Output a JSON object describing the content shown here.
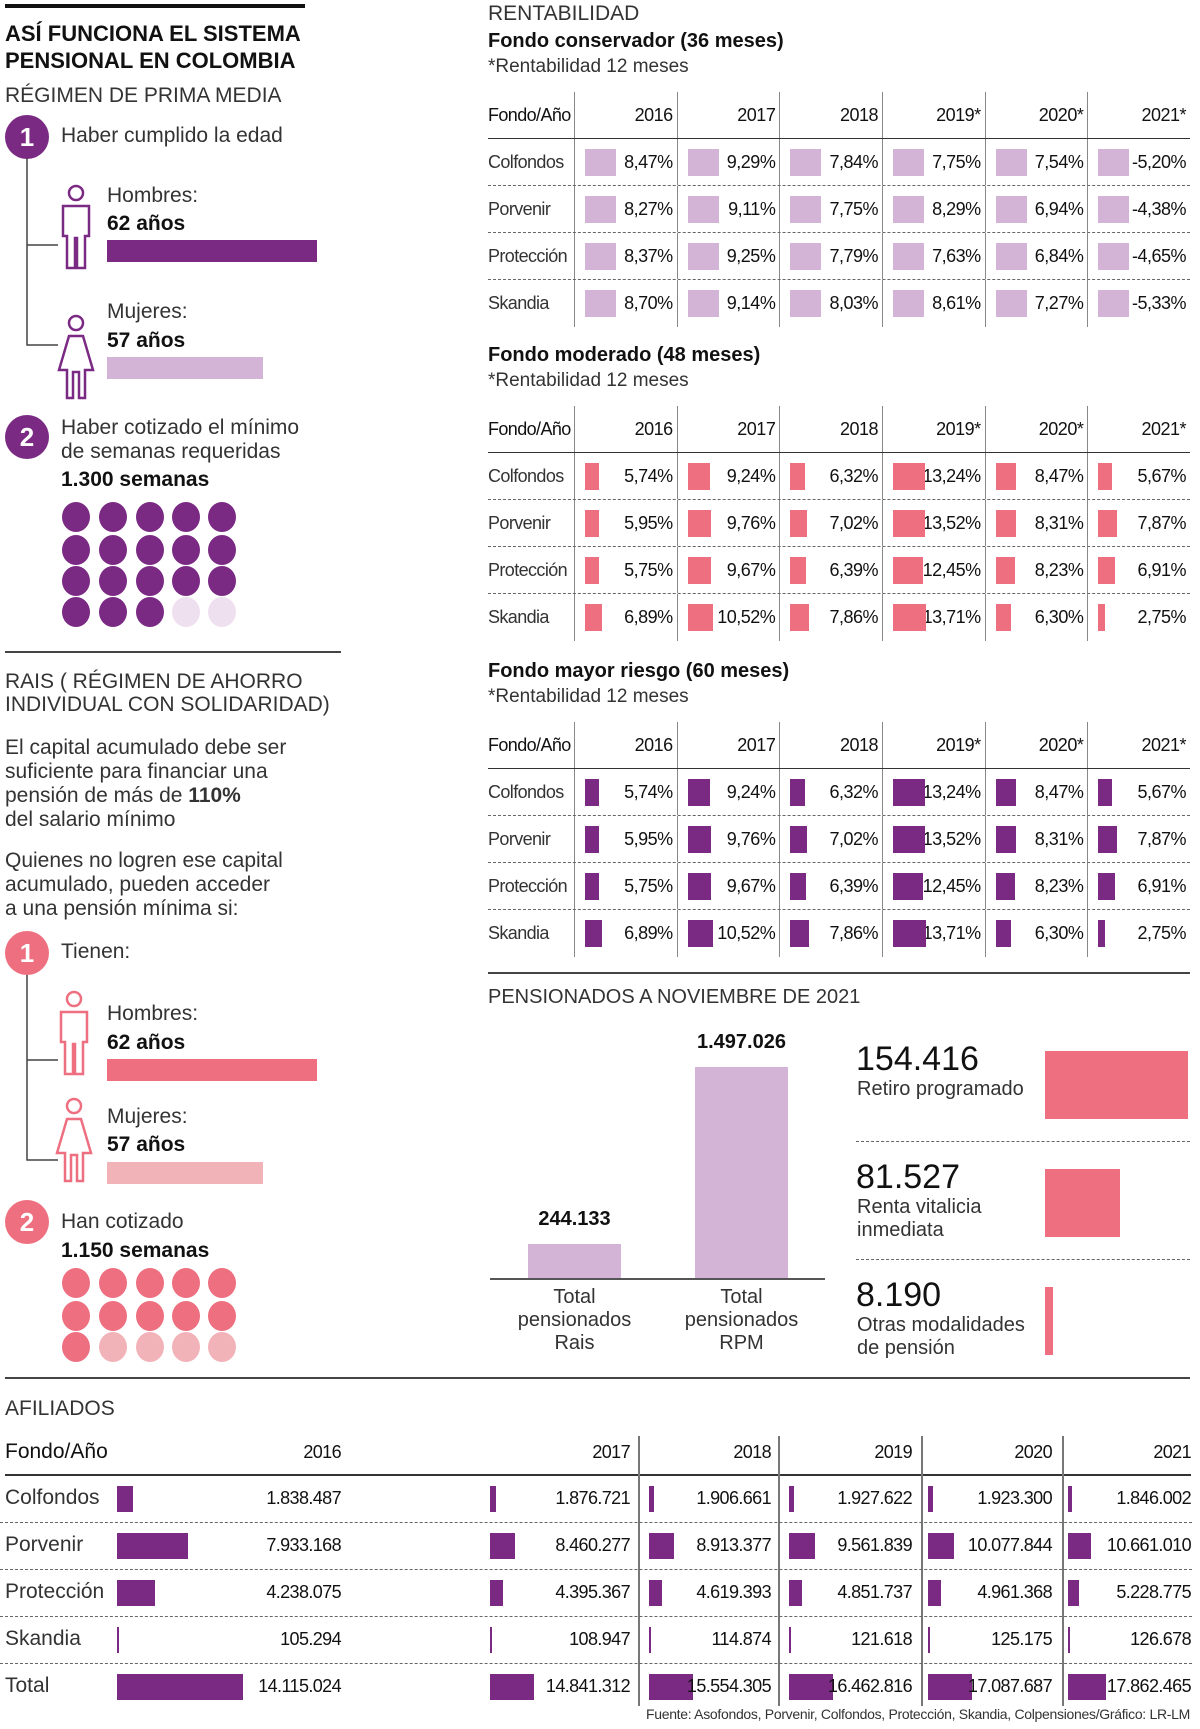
{
  "colors": {
    "purple": "#7b2a84",
    "lilac": "#d3b4d7",
    "pink": "#ee6f80",
    "light_pink": "#f2b3b8"
  },
  "left": {
    "title_line1": "ASÍ FUNCIONA EL SISTEMA",
    "title_line2": "PENSIONAL EN COLOMBIA",
    "rpm": {
      "heading": "RÉGIMEN DE PRIMA MEDIA",
      "step1_num": "1",
      "step1_text": "Haber cumplido la edad",
      "men_label": "Hombres:",
      "men_age": "62 años",
      "women_label": "Mujeres:",
      "women_age": "57 años",
      "step2_num": "2",
      "step2_line1": "Haber cotizado el mínimo",
      "step2_line2": "de semanas requeridas",
      "weeks": "1.300 semanas",
      "dots_filled": 18,
      "dots_total": 20
    },
    "rais": {
      "heading_line1": "RAIS ( RÉGIMEN DE AHORRO",
      "heading_line2": "INDIVIDUAL CON SOLIDARIDAD)",
      "p1_line1": "El capital acumulado debe ser",
      "p1_line2": "suficiente para financiar una",
      "p1_line3": "pensión de más de ",
      "p1_bold": "110%",
      "p1_line4": "del salario mínimo",
      "p2_line1": "Quienes no logren ese capital",
      "p2_line2": "acumulado, pueden acceder",
      "p2_line3": "a una pensión mínima si:",
      "step1_num": "1",
      "step1_text": "Tienen:",
      "men_label": "Hombres:",
      "men_age": "62 años",
      "women_label": "Mujeres:",
      "women_age": "57 años",
      "step2_num": "2",
      "step2_text": "Han cotizado",
      "weeks": "1.150 semanas",
      "dots_filled": 11,
      "dots_total": 15
    }
  },
  "rentabilidad": {
    "heading": "RENTABILIDAD"
  },
  "pensionados": {
    "heading": "PENSIONADOS A NOVIEMBRE DE 2021"
  },
  "source": "Fuente: Asofondos, Porvenir, Colfondos, Protección, Skandia, Colpensiones/Gráfico: LR-LM",
  "chart_data": [
    {
      "type": "table",
      "title": "Fondo conservador (36 meses)",
      "subtitle": "*Rentabilidad 12 meses",
      "corner": "Fondo/Año",
      "columns": [
        "2016",
        "2017",
        "2018",
        "2019*",
        "2020*",
        "2021*"
      ],
      "color": "#d3b4d7",
      "rows": [
        {
          "name": "Colfondos",
          "values": [
            "8,47%",
            "9,29%",
            "7,84%",
            "7,75%",
            "7,54%",
            "-5,20%"
          ]
        },
        {
          "name": "Porvenir",
          "values": [
            "8,27%",
            "9,11%",
            "7,75%",
            "8,29%",
            "6,94%",
            "-4,38%"
          ]
        },
        {
          "name": "Protección",
          "values": [
            "8,37%",
            "9,25%",
            "7,79%",
            "7,63%",
            "6,84%",
            "-4,65%"
          ]
        },
        {
          "name": "Skandia",
          "values": [
            "8,70%",
            "9,14%",
            "8,03%",
            "8,61%",
            "7,27%",
            "-5,33%"
          ]
        }
      ]
    },
    {
      "type": "table",
      "title": "Fondo moderado (48 meses)",
      "subtitle": "*Rentabilidad 12 meses",
      "corner": "Fondo/Año",
      "columns": [
        "2016",
        "2017",
        "2018",
        "2019*",
        "2020*",
        "2021*"
      ],
      "color": "#ee6f80",
      "rows": [
        {
          "name": "Colfondos",
          "values": [
            "5,74%",
            "9,24%",
            "6,32%",
            "13,24%",
            "8,47%",
            "5,67%"
          ]
        },
        {
          "name": "Porvenir",
          "values": [
            "5,95%",
            "9,76%",
            "7,02%",
            "13,52%",
            "8,31%",
            "7,87%"
          ]
        },
        {
          "name": "Protección",
          "values": [
            "5,75%",
            "9,67%",
            "6,39%",
            "12,45%",
            "8,23%",
            "6,91%"
          ]
        },
        {
          "name": "Skandia",
          "values": [
            "6,89%",
            "10,52%",
            "7,86%",
            "13,71%",
            "6,30%",
            "2,75%"
          ]
        }
      ]
    },
    {
      "type": "table",
      "title": "Fondo mayor riesgo (60  meses)",
      "subtitle": "*Rentabilidad 12 meses",
      "corner": "Fondo/Año",
      "columns": [
        "2016",
        "2017",
        "2018",
        "2019*",
        "2020*",
        "2021*"
      ],
      "color": "#7b2a84",
      "rows": [
        {
          "name": "Colfondos",
          "values": [
            "5,74%",
            "9,24%",
            "6,32%",
            "13,24%",
            "8,47%",
            "5,67%"
          ]
        },
        {
          "name": "Porvenir",
          "values": [
            "5,95%",
            "9,76%",
            "7,02%",
            "13,52%",
            "8,31%",
            "7,87%"
          ]
        },
        {
          "name": "Protección",
          "values": [
            "5,75%",
            "9,67%",
            "6,39%",
            "12,45%",
            "8,23%",
            "6,91%"
          ]
        },
        {
          "name": "Skandia",
          "values": [
            "6,89%",
            "10,52%",
            "7,86%",
            "13,71%",
            "6,30%",
            "2,75%"
          ]
        }
      ]
    },
    {
      "type": "bar",
      "title": "PENSIONADOS A NOVIEMBRE DE 2021",
      "categories": [
        "Total pensionados Rais",
        "Total pensionados RPM"
      ],
      "values": [
        244133,
        1497026
      ],
      "labels": [
        "244.133",
        "1.497.026"
      ],
      "color": "#d3b4d7"
    },
    {
      "type": "bar",
      "orientation": "horizontal",
      "categories": [
        "Retiro programado",
        "Renta vitalicia inmediata",
        "Otras modalidades de pensión"
      ],
      "values": [
        154416,
        81527,
        8190
      ],
      "labels": [
        "154.416",
        "81.527",
        "8.190"
      ],
      "color": "#ee6f80"
    },
    {
      "type": "table",
      "title": "AFILIADOS",
      "corner": "Fondo/Año",
      "columns": [
        "2016",
        "2017",
        "2018",
        "2019",
        "2020",
        "2021"
      ],
      "color": "#7b2a84",
      "rows": [
        {
          "name": "Colfondos",
          "values": [
            1838487,
            1876721,
            1906661,
            1927622,
            1923300,
            1846002
          ],
          "labels": [
            "1.838.487",
            "1.876.721",
            "1.906.661",
            "1.927.622",
            "1.923.300",
            "1.846.002"
          ]
        },
        {
          "name": "Porvenir",
          "values": [
            7933168,
            8460277,
            8913377,
            9561839,
            10077844,
            10661010
          ],
          "labels": [
            "7.933.168",
            "8.460.277",
            "8.913.377",
            "9.561.839",
            "10.077.844",
            "10.661.010"
          ]
        },
        {
          "name": "Protección",
          "values": [
            4238075,
            4395367,
            4619393,
            4851737,
            4961368,
            5228775
          ],
          "labels": [
            "4.238.075",
            "4.395.367",
            "4.619.393",
            "4.851.737",
            "4.961.368",
            "5.228.775"
          ]
        },
        {
          "name": "Skandia",
          "values": [
            105294,
            108947,
            114874,
            121618,
            125175,
            126678
          ],
          "labels": [
            "105.294",
            "108.947",
            "114.874",
            "121.618",
            "125.175",
            "126.678"
          ]
        },
        {
          "name": "Total",
          "values": [
            14115024,
            14841312,
            15554305,
            16462816,
            17087687,
            17862465
          ],
          "labels": [
            "14.115.024",
            "14.841.312",
            "15.554.305",
            "16.462.816",
            "17.087.687",
            "17.862.465"
          ]
        }
      ]
    }
  ]
}
